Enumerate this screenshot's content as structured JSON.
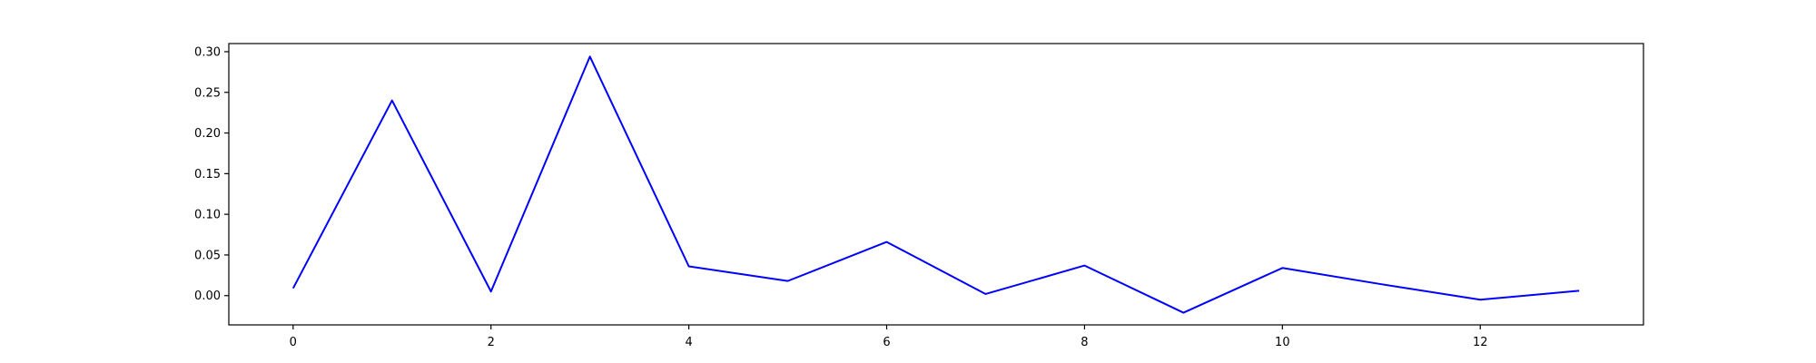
{
  "chart_data": {
    "type": "line",
    "title": "",
    "xlabel": "",
    "ylabel": "",
    "xlim": [
      -0.65,
      13.65
    ],
    "ylim": [
      -0.036,
      0.31
    ],
    "x_ticks": [
      0,
      2,
      4,
      6,
      8,
      10,
      12
    ],
    "x_tick_labels": [
      "0",
      "2",
      "4",
      "6",
      "8",
      "10",
      "12"
    ],
    "y_ticks": [
      0.0,
      0.05,
      0.1,
      0.15,
      0.2,
      0.25,
      0.3
    ],
    "y_tick_labels": [
      "0.00",
      "0.05",
      "0.10",
      "0.15",
      "0.20",
      "0.25",
      "0.30"
    ],
    "grid": false,
    "legend": "none",
    "series": [
      {
        "color": "#0000ff",
        "x": [
          0,
          1,
          2,
          3,
          4,
          5,
          6,
          7,
          8,
          9,
          10,
          11,
          12,
          13
        ],
        "y": [
          0.009,
          0.24,
          0.005,
          0.294,
          0.036,
          0.018,
          0.066,
          0.002,
          0.037,
          -0.021,
          0.034,
          0.014,
          -0.005,
          0.006
        ]
      }
    ]
  }
}
